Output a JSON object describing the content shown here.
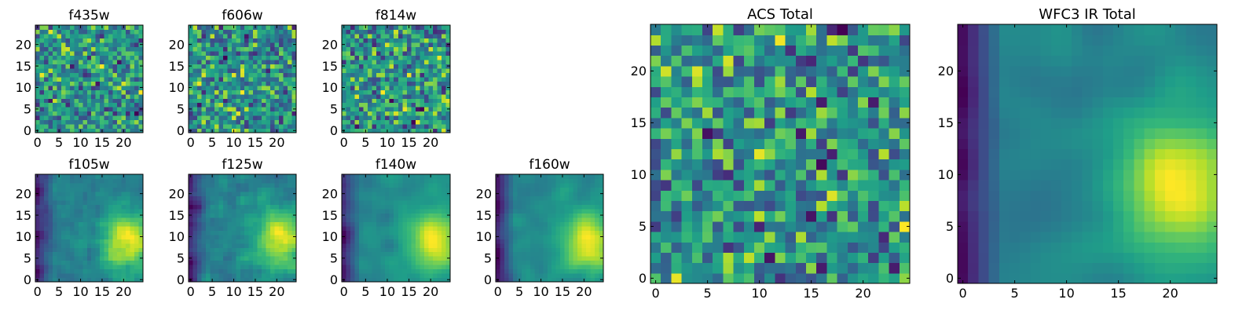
{
  "figure": {
    "background": "#ffffff"
  },
  "chart_data": [
    {
      "type": "heatmap",
      "title": "f435w",
      "xlabel": "",
      "ylabel": "",
      "xticks": [
        0,
        5,
        10,
        15,
        20
      ],
      "yticks": [
        0,
        5,
        10,
        15,
        20
      ],
      "xlim": [
        -0.5,
        24.5
      ],
      "ylim": [
        -0.5,
        24.5
      ],
      "grid": false,
      "colormap": "viridis",
      "shape": [
        25,
        25
      ],
      "seed": 11,
      "smooth": 0,
      "trend": "none"
    },
    {
      "type": "heatmap",
      "title": "f606w",
      "xlabel": "",
      "ylabel": "",
      "xticks": [
        0,
        5,
        10,
        15,
        20
      ],
      "yticks": [
        0,
        5,
        10,
        15,
        20
      ],
      "xlim": [
        -0.5,
        24.5
      ],
      "ylim": [
        -0.5,
        24.5
      ],
      "grid": false,
      "colormap": "viridis",
      "shape": [
        25,
        25
      ],
      "seed": 23,
      "smooth": 0,
      "trend": "none"
    },
    {
      "type": "heatmap",
      "title": "f814w",
      "xlabel": "",
      "ylabel": "",
      "xticks": [
        0,
        5,
        10,
        15,
        20
      ],
      "yticks": [
        0,
        5,
        10,
        15,
        20
      ],
      "xlim": [
        -0.5,
        24.5
      ],
      "ylim": [
        -0.5,
        24.5
      ],
      "grid": false,
      "colormap": "viridis",
      "shape": [
        25,
        25
      ],
      "seed": 37,
      "smooth": 0,
      "trend": "none"
    },
    {
      "type": "heatmap",
      "title": "f105w",
      "xlabel": "",
      "ylabel": "",
      "xticks": [
        0,
        5,
        10,
        15,
        20
      ],
      "yticks": [
        0,
        5,
        10,
        15,
        20
      ],
      "xlim": [
        -0.5,
        24.5
      ],
      "ylim": [
        -0.5,
        24.5
      ],
      "grid": false,
      "colormap": "viridis",
      "shape": [
        25,
        25
      ],
      "seed": 41,
      "smooth": 1,
      "trend": "right"
    },
    {
      "type": "heatmap",
      "title": "f125w",
      "xlabel": "",
      "ylabel": "",
      "xticks": [
        0,
        5,
        10,
        15,
        20
      ],
      "yticks": [
        0,
        5,
        10,
        15,
        20
      ],
      "xlim": [
        -0.5,
        24.5
      ],
      "ylim": [
        -0.5,
        24.5
      ],
      "grid": false,
      "colormap": "viridis",
      "shape": [
        25,
        25
      ],
      "seed": 53,
      "smooth": 1,
      "trend": "right"
    },
    {
      "type": "heatmap",
      "title": "f140w",
      "xlabel": "",
      "ylabel": "",
      "xticks": [
        0,
        5,
        10,
        15,
        20
      ],
      "yticks": [
        0,
        5,
        10,
        15,
        20
      ],
      "xlim": [
        -0.5,
        24.5
      ],
      "ylim": [
        -0.5,
        24.5
      ],
      "grid": false,
      "colormap": "viridis",
      "shape": [
        25,
        25
      ],
      "seed": 67,
      "smooth": 2,
      "trend": "right"
    },
    {
      "type": "heatmap",
      "title": "f160w",
      "xlabel": "",
      "ylabel": "",
      "xticks": [
        0,
        5,
        10,
        15,
        20
      ],
      "yticks": [
        0,
        5,
        10,
        15,
        20
      ],
      "xlim": [
        -0.5,
        24.5
      ],
      "ylim": [
        -0.5,
        24.5
      ],
      "grid": false,
      "colormap": "viridis",
      "shape": [
        25,
        25
      ],
      "seed": 79,
      "smooth": 2,
      "trend": "right"
    },
    {
      "type": "heatmap",
      "title": "ACS Total",
      "xlabel": "",
      "ylabel": "",
      "xticks": [
        0,
        5,
        10,
        15,
        20
      ],
      "yticks": [
        0,
        5,
        10,
        15,
        20
      ],
      "xlim": [
        -0.5,
        24.5
      ],
      "ylim": [
        -0.5,
        24.5
      ],
      "grid": false,
      "colormap": "viridis",
      "shape": [
        25,
        25
      ],
      "seed": 89,
      "smooth": 0,
      "trend": "none"
    },
    {
      "type": "heatmap",
      "title": "WFC3 IR Total",
      "xlabel": "",
      "ylabel": "",
      "xticks": [
        0,
        5,
        10,
        15,
        20
      ],
      "yticks": [
        0,
        5,
        10,
        15,
        20
      ],
      "xlim": [
        -0.5,
        24.5
      ],
      "ylim": [
        -0.5,
        24.5
      ],
      "grid": false,
      "colormap": "viridis",
      "shape": [
        25,
        25
      ],
      "seed": 97,
      "smooth": 3,
      "trend": "right"
    }
  ]
}
